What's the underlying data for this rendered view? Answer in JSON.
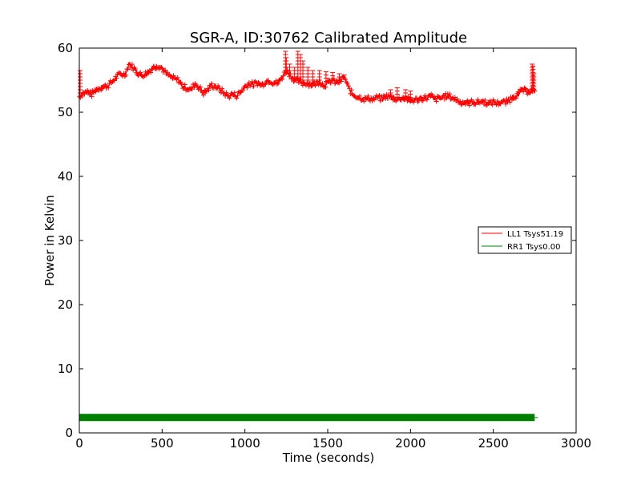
{
  "chart_data": {
    "type": "line",
    "title": "SGR-A, ID:30762 Calibrated Amplitude",
    "xlabel": "Time (seconds)",
    "ylabel": "Power in Kelvin",
    "xlim": [
      0,
      3000
    ],
    "ylim": [
      0,
      60
    ],
    "xticks": [
      0,
      500,
      1000,
      1500,
      2000,
      2500,
      3000
    ],
    "yticks": [
      0,
      10,
      20,
      30,
      40,
      50,
      60
    ],
    "grid": false,
    "legend_position": "right",
    "series": [
      {
        "name": "LL1 Tsys51.19",
        "color": "#ff0000",
        "marker": "plus",
        "x": [
          0,
          25,
          50,
          75,
          100,
          125,
          150,
          175,
          200,
          225,
          250,
          275,
          300,
          325,
          350,
          375,
          400,
          425,
          450,
          475,
          500,
          525,
          550,
          575,
          600,
          625,
          650,
          675,
          700,
          725,
          750,
          775,
          800,
          825,
          850,
          875,
          900,
          925,
          950,
          975,
          1000,
          1025,
          1050,
          1075,
          1100,
          1125,
          1150,
          1175,
          1200,
          1225,
          1250,
          1275,
          1300,
          1325,
          1350,
          1375,
          1400,
          1425,
          1450,
          1475,
          1500,
          1525,
          1550,
          1575,
          1600,
          1625,
          1650,
          1675,
          1700,
          1725,
          1750,
          1775,
          1800,
          1825,
          1850,
          1875,
          1900,
          1925,
          1950,
          1975,
          2000,
          2025,
          2050,
          2075,
          2100,
          2125,
          2150,
          2175,
          2200,
          2225,
          2250,
          2275,
          2300,
          2325,
          2350,
          2375,
          2400,
          2425,
          2450,
          2475,
          2500,
          2525,
          2550,
          2575,
          2600,
          2625,
          2650,
          2675,
          2700,
          2725,
          2750
        ],
        "y": [
          52.5,
          53.0,
          53.2,
          52.8,
          53.5,
          53.8,
          54.0,
          54.2,
          54.8,
          55.5,
          56.0,
          55.8,
          57.5,
          57.0,
          56.2,
          55.8,
          56.0,
          56.5,
          57.0,
          57.3,
          56.8,
          56.0,
          55.5,
          55.2,
          55.0,
          54.0,
          53.8,
          53.5,
          54.5,
          53.8,
          53.0,
          53.5,
          54.2,
          54.0,
          53.5,
          53.0,
          52.5,
          52.8,
          52.6,
          53.2,
          54.0,
          54.5,
          54.3,
          54.6,
          54.2,
          54.8,
          55.0,
          54.6,
          54.5,
          55.5,
          56.5,
          55.8,
          55.0,
          54.8,
          54.5,
          54.6,
          54.3,
          54.5,
          54.8,
          54.2,
          54.5,
          55.0,
          54.6,
          54.8,
          55.5,
          53.8,
          52.8,
          52.5,
          52.3,
          52.0,
          52.2,
          52.0,
          52.3,
          52.1,
          52.5,
          52.4,
          52.2,
          52.0,
          52.3,
          52.1,
          51.8,
          51.9,
          52.0,
          52.2,
          52.3,
          52.5,
          52.0,
          52.2,
          52.4,
          52.6,
          52.3,
          52.0,
          51.6,
          51.5,
          51.4,
          51.6,
          51.5,
          51.7,
          51.6,
          51.3,
          51.6,
          51.4,
          51.6,
          51.5,
          52.0,
          52.5,
          52.8,
          53.5,
          53.2,
          53.4,
          53.3
        ],
        "spikes": [
          {
            "x": 5,
            "y": 56.5
          },
          {
            "x": 1245,
            "y": 59.5
          },
          {
            "x": 1250,
            "y": 58.5
          },
          {
            "x": 1270,
            "y": 57.5
          },
          {
            "x": 1300,
            "y": 57.0
          },
          {
            "x": 1320,
            "y": 59.5
          },
          {
            "x": 1335,
            "y": 59.0
          },
          {
            "x": 1350,
            "y": 58.0
          },
          {
            "x": 1380,
            "y": 57.0
          },
          {
            "x": 1410,
            "y": 56.5
          },
          {
            "x": 1450,
            "y": 56.5
          },
          {
            "x": 1490,
            "y": 56.3
          },
          {
            "x": 1530,
            "y": 56.2
          },
          {
            "x": 1570,
            "y": 56.0
          },
          {
            "x": 1600,
            "y": 55.8
          },
          {
            "x": 1880,
            "y": 53.5
          },
          {
            "x": 1920,
            "y": 53.8
          },
          {
            "x": 1970,
            "y": 53.5
          },
          {
            "x": 2000,
            "y": 53.3
          },
          {
            "x": 2735,
            "y": 57.5
          },
          {
            "x": 2740,
            "y": 57.2
          },
          {
            "x": 2745,
            "y": 56.0
          }
        ]
      },
      {
        "name": "RR1 Tsys0.00",
        "color": "#008000",
        "marker": "plus",
        "x": [
          0,
          2750
        ],
        "y": [
          2.4,
          2.4
        ]
      }
    ]
  }
}
